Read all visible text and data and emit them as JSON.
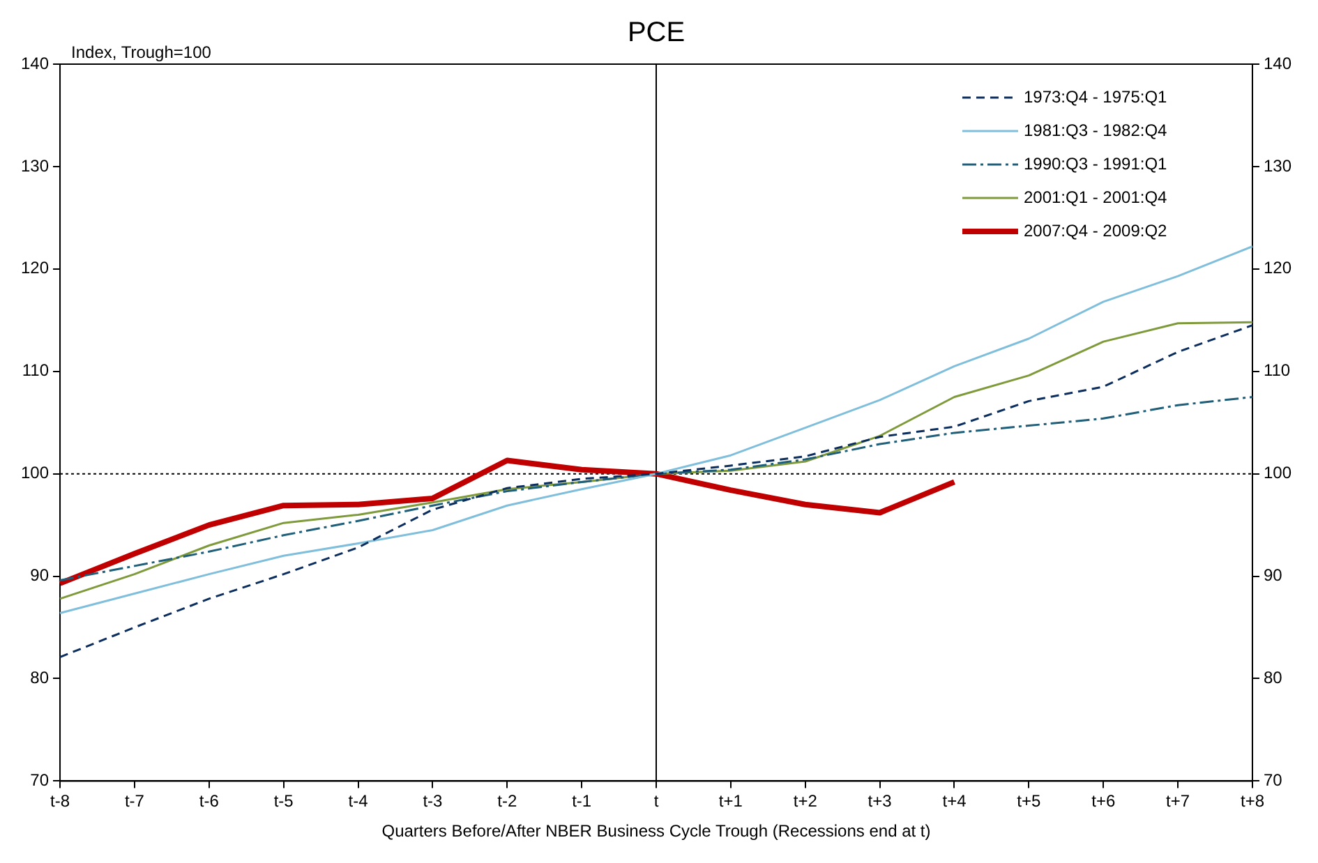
{
  "chart_data": {
    "type": "line",
    "title": "PCE",
    "ylabel": "Index, Trough=100",
    "xlabel": "Quarters Before/After NBER Business Cycle Trough (Recessions end at t)",
    "categories": [
      "t-8",
      "t-7",
      "t-6",
      "t-5",
      "t-4",
      "t-3",
      "t-2",
      "t-1",
      "t",
      "t+1",
      "t+2",
      "t+3",
      "t+4",
      "t+5",
      "t+6",
      "t+7",
      "t+8"
    ],
    "series": [
      {
        "name": "1973:Q4 - 1975:Q1",
        "color": "#0b2e5e",
        "line_style": "dashed",
        "values": [
          82.1,
          85,
          87.8,
          90.2,
          92.8,
          96.5,
          98.6,
          99.5,
          100,
          100.8,
          101.7,
          103.6,
          104.6,
          107.1,
          108.5,
          111.9,
          114.5
        ]
      },
      {
        "name": "1981:Q3 - 1982:Q4",
        "color": "#7fbfdc",
        "line_style": "solid",
        "values": [
          86.4,
          88.3,
          90.2,
          92,
          93.2,
          94.5,
          96.9,
          98.5,
          100,
          101.8,
          104.5,
          107.2,
          110.5,
          113.2,
          116.8,
          119.3,
          122.2
        ]
      },
      {
        "name": "1990:Q3 - 1991:Q1",
        "color": "#1f5f7a",
        "line_style": "dashdot",
        "values": [
          89.6,
          91,
          92.4,
          94,
          95.4,
          96.9,
          98.3,
          99.2,
          100,
          100.4,
          101.4,
          102.9,
          104,
          104.7,
          105.4,
          106.7,
          107.5
        ]
      },
      {
        "name": "2001:Q1 - 2001:Q4",
        "color": "#7f9a3a",
        "line_style": "solid",
        "values": [
          87.8,
          90.2,
          93,
          95.2,
          96,
          97.2,
          98.5,
          99.2,
          100,
          100.3,
          101.2,
          103.7,
          107.5,
          109.6,
          112.9,
          114.7,
          114.8
        ]
      },
      {
        "name": "2007:Q4 - 2009:Q2",
        "color": "#c00000",
        "line_style": "solid",
        "values": [
          89.3,
          92.2,
          95,
          96.9,
          97,
          97.6,
          101.3,
          100.4,
          100,
          98.4,
          97,
          96.2,
          99.2,
          null,
          null,
          null,
          null
        ]
      }
    ],
    "ylim": [
      70,
      140
    ],
    "yticks": [
      70,
      80,
      90,
      100,
      110,
      120,
      130,
      140
    ],
    "y2lim": [
      70,
      140
    ],
    "y2ticks": [
      70,
      80,
      90,
      100,
      110,
      120,
      130,
      140
    ],
    "ref_lines": [
      {
        "axis": "y",
        "value": 100,
        "color": "#000000",
        "line_style": "dotted"
      },
      {
        "axis": "x",
        "value": "t",
        "color": "#000000",
        "line_style": "solid"
      }
    ],
    "grid": false,
    "legend": "top right",
    "marker": "none"
  }
}
